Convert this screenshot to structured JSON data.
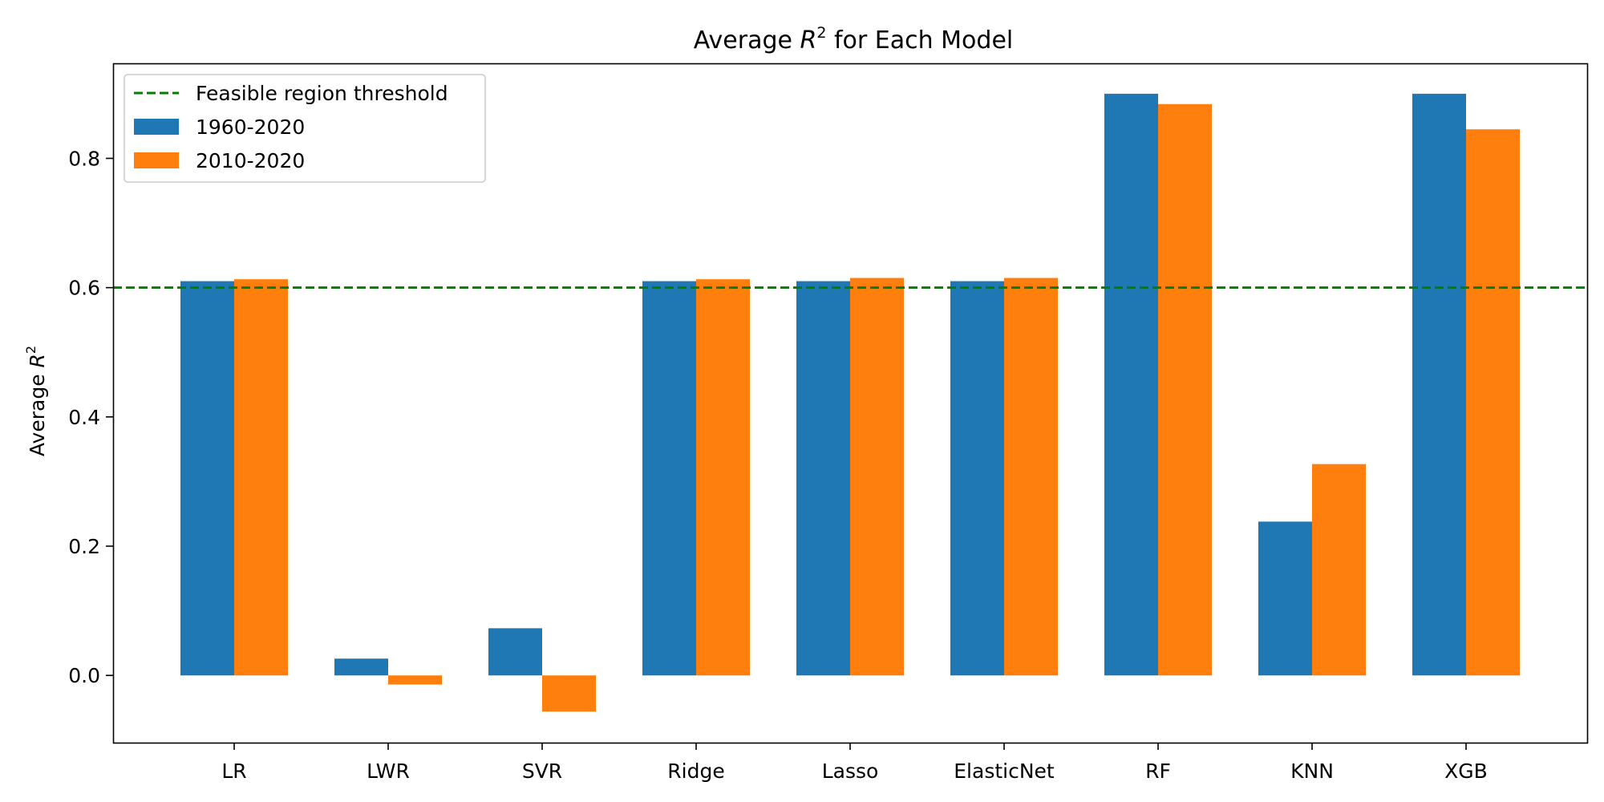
{
  "chart_data": {
    "type": "bar",
    "title": {
      "prefix": "Average ",
      "var": "R",
      "sup": "2",
      "suffix": " for Each Model"
    },
    "xlabel": "",
    "ylabel": {
      "prefix": "Average ",
      "var": "R",
      "sup": "2"
    },
    "categories": [
      "LR",
      "LWR",
      "SVR",
      "Ridge",
      "Lasso",
      "ElasticNet",
      "RF",
      "KNN",
      "XGB"
    ],
    "series": [
      {
        "name": "1960-2020",
        "color": "#1f77b4",
        "values": [
          0.61,
          0.026,
          0.073,
          0.61,
          0.61,
          0.61,
          0.9,
          0.238,
          0.9
        ]
      },
      {
        "name": "2010-2020",
        "color": "#ff7f0e",
        "values": [
          0.613,
          -0.014,
          -0.056,
          0.613,
          0.615,
          0.615,
          0.884,
          0.327,
          0.845
        ]
      }
    ],
    "threshold": {
      "label": "Feasible region threshold",
      "value": 0.6,
      "color": "#008000",
      "style": "dashed"
    },
    "ylim": [
      -0.104,
      0.947
    ],
    "yticks": [
      "0.0",
      "0.2",
      "0.4",
      "0.6",
      "0.8"
    ],
    "ytick_values": [
      0.0,
      0.2,
      0.4,
      0.6,
      0.8
    ],
    "legend_position": "top-left",
    "grid": false
  }
}
